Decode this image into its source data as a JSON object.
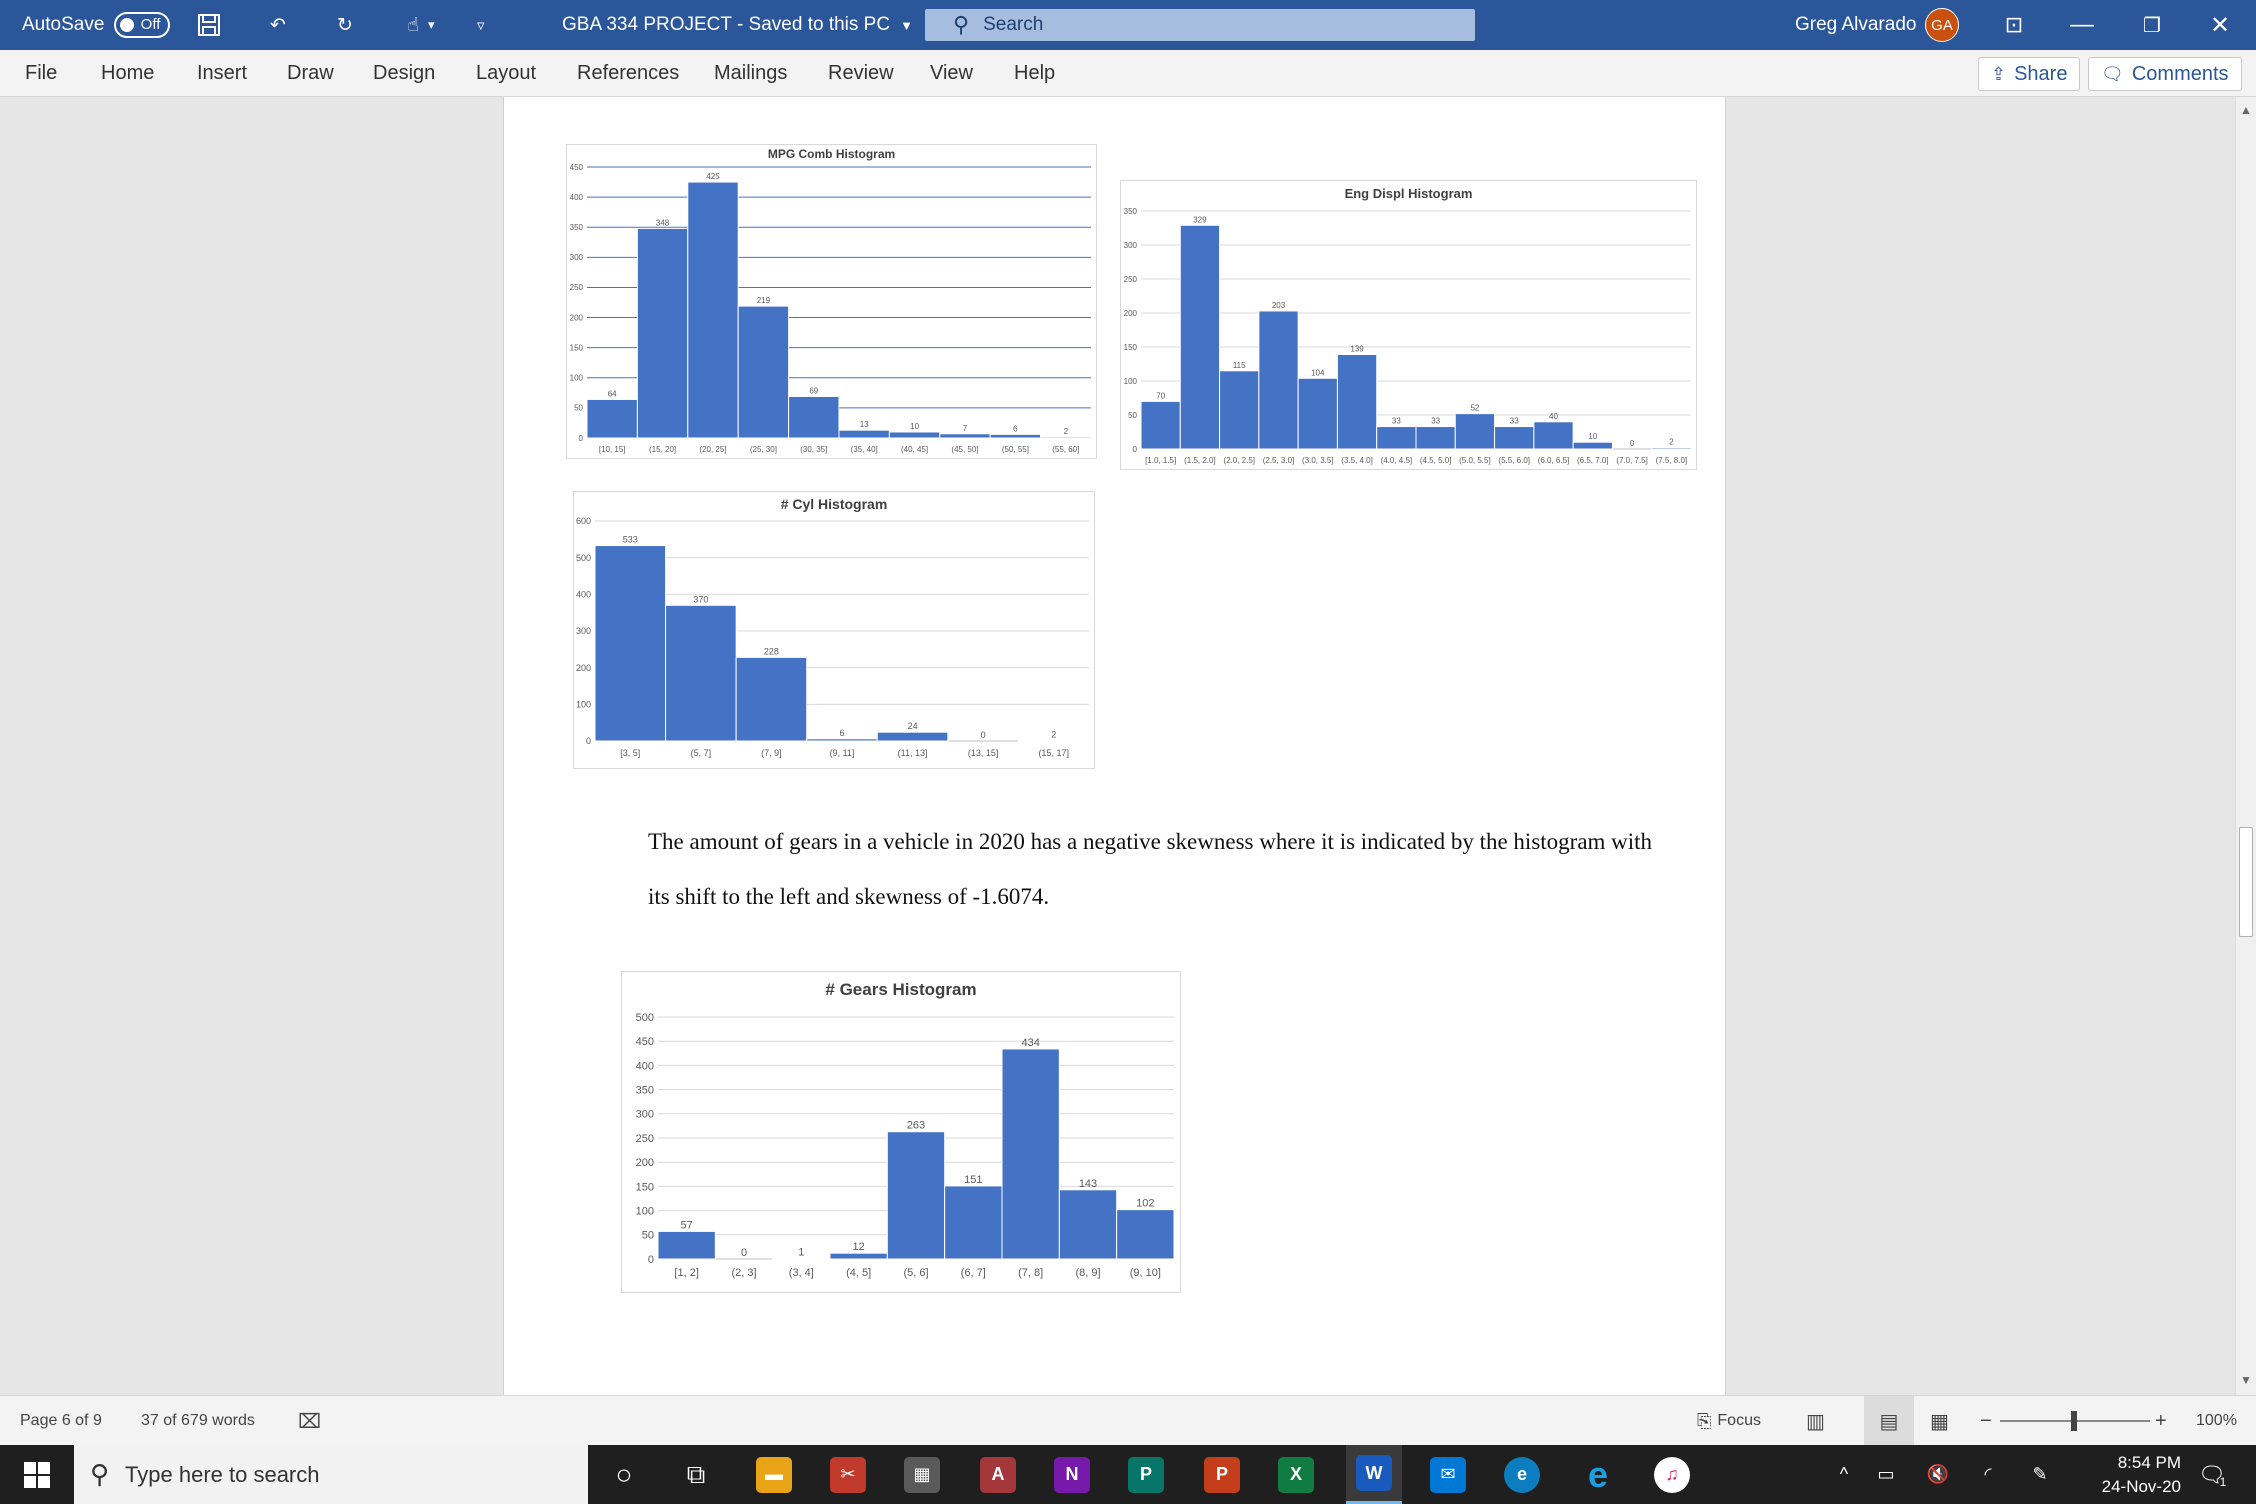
{
  "titlebar": {
    "autosave_label": "AutoSave",
    "autosave_state": "Off",
    "doc_title": "GBA 334 PROJECT  -  Saved to this PC",
    "search_placeholder": "Search",
    "user_name": "Greg Alvarado",
    "user_initials": "GA"
  },
  "ribbon": {
    "tabs": [
      "File",
      "Home",
      "Insert",
      "Draw",
      "Design",
      "Layout",
      "References",
      "Mailings",
      "Review",
      "View",
      "Help"
    ],
    "share_label": "Share",
    "comments_label": "Comments"
  },
  "document": {
    "paragraph": "The amount of gears in a vehicle in 2020 has a negative skewness where it is indicated by the histogram with its shift to the left and skewness of -1.6074."
  },
  "chart_data": [
    {
      "type": "bar",
      "title": "MPG Comb Histogram",
      "categories": [
        "[10, 15]",
        "(15, 20]",
        "(20, 25]",
        "(25, 30]",
        "(30, 35]",
        "(35, 40]",
        "(40, 45]",
        "(45, 50]",
        "(50, 55]",
        "(55, 60]"
      ],
      "values": [
        64,
        348,
        425,
        219,
        69,
        13,
        10,
        7,
        6,
        2
      ],
      "ylim": [
        0,
        450
      ],
      "yticks": [
        0,
        50,
        100,
        150,
        200,
        250,
        300,
        350,
        400,
        450
      ],
      "grid": true,
      "color": "#4472c4"
    },
    {
      "type": "bar",
      "title": "Eng Displ Histogram",
      "categories": [
        "[1.0, 1.5]",
        "(1.5, 2.0]",
        "(2.0, 2.5]",
        "(2.5, 3.0]",
        "(3.0, 3.5]",
        "(3.5, 4.0]",
        "(4.0, 4.5]",
        "(4.5, 5.0]",
        "(5.0, 5.5]",
        "(5.5, 6.0]",
        "(6.0, 6.5]",
        "(6.5, 7.0]",
        "(7.0, 7.5]",
        "(7.5, 8.0]"
      ],
      "values": [
        70,
        329,
        115,
        203,
        104,
        139,
        33,
        33,
        52,
        33,
        40,
        10,
        0,
        2
      ],
      "ylim": [
        0,
        350
      ],
      "yticks": [
        0,
        50,
        100,
        150,
        200,
        250,
        300,
        350
      ],
      "grid": true,
      "color": "#4472c4"
    },
    {
      "type": "bar",
      "title": "# Cyl Histogram",
      "categories": [
        "[3, 5]",
        "(5, 7]",
        "(7, 9]",
        "(9, 11]",
        "(11, 13]",
        "(13, 15]",
        "(15, 17]"
      ],
      "values": [
        533,
        370,
        228,
        6,
        24,
        0,
        2
      ],
      "ylim": [
        0,
        600
      ],
      "yticks": [
        0,
        100,
        200,
        300,
        400,
        500,
        600
      ],
      "grid": true,
      "color": "#4472c4"
    },
    {
      "type": "bar",
      "title": "# Gears  Histogram",
      "categories": [
        "[1, 2]",
        "(2, 3]",
        "(3, 4]",
        "(4, 5]",
        "(5, 6]",
        "(6, 7]",
        "(7, 8]",
        "(8, 9]",
        "(9, 10]"
      ],
      "values": [
        57,
        0,
        1,
        12,
        263,
        151,
        434,
        143,
        102
      ],
      "ylim": [
        0,
        500
      ],
      "yticks": [
        0,
        50,
        100,
        150,
        200,
        250,
        300,
        350,
        400,
        450,
        500
      ],
      "grid": true,
      "color": "#4472c4"
    }
  ],
  "statusbar": {
    "page": "Page 6 of 9",
    "words": "37 of 679 words",
    "focus_label": "Focus",
    "zoom_minus": "−",
    "zoom_plus": "+",
    "zoom": "100%"
  },
  "taskbar": {
    "search_placeholder": "Type here to search",
    "time": "8:54 PM",
    "date": "24-Nov-20",
    "notification_count": "1"
  }
}
